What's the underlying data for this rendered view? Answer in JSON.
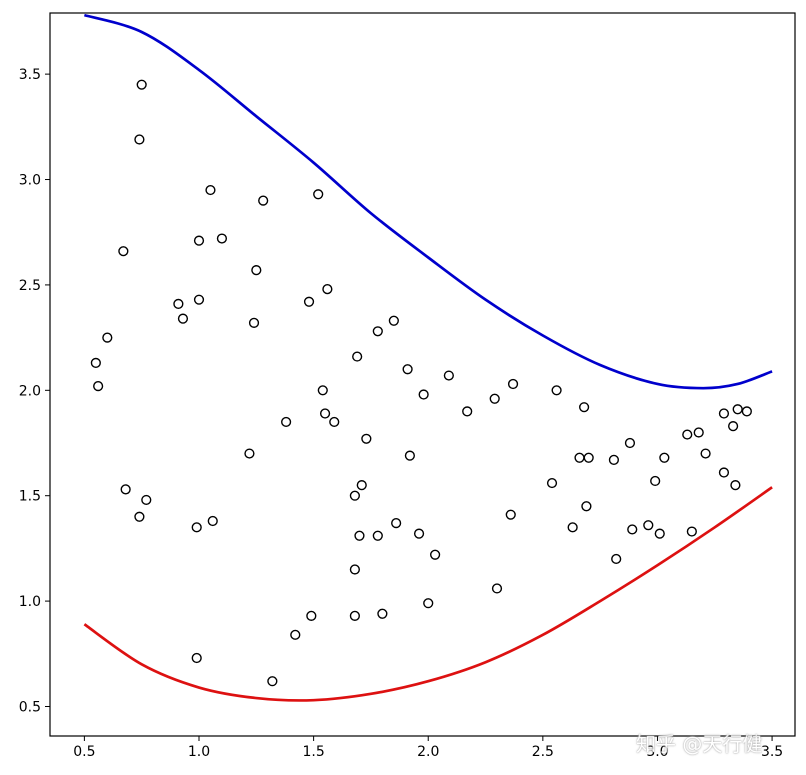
{
  "chart_data": {
    "type": "scatter",
    "title": "",
    "xlabel": "",
    "ylabel": "",
    "xlim": [
      0.35,
      3.6
    ],
    "ylim": [
      0.36,
      3.79
    ],
    "x_ticks": [
      0.5,
      1.0,
      1.5,
      2.0,
      2.5,
      3.0,
      3.5
    ],
    "x_tick_labels": [
      "0.5",
      "1.0",
      "1.5",
      "2.0",
      "2.5",
      "3.0",
      "3.5"
    ],
    "y_ticks": [
      0.5,
      1.0,
      1.5,
      2.0,
      2.5,
      3.0,
      3.5
    ],
    "y_tick_labels": [
      "0.5",
      "1.0",
      "1.5",
      "2.0",
      "2.5",
      "3.0",
      "3.5"
    ],
    "grid": false,
    "points": {
      "marker": "open-circle",
      "edge_color": "#000000",
      "x": [
        0.55,
        0.56,
        0.6,
        0.67,
        0.68,
        0.74,
        0.74,
        0.75,
        0.77,
        0.91,
        0.93,
        0.99,
        0.99,
        1.0,
        1.0,
        1.05,
        1.06,
        1.1,
        1.22,
        1.24,
        1.25,
        1.28,
        1.32,
        1.38,
        1.42,
        1.48,
        1.49,
        1.52,
        1.54,
        1.55,
        1.56,
        1.59,
        1.68,
        1.68,
        1.68,
        1.69,
        1.7,
        1.71,
        1.73,
        1.78,
        1.78,
        1.8,
        1.85,
        1.86,
        1.91,
        1.92,
        1.96,
        1.98,
        2.0,
        2.03,
        2.09,
        2.17,
        2.29,
        2.3,
        2.36,
        2.37,
        2.54,
        2.56,
        2.63,
        2.66,
        2.68,
        2.69,
        2.7,
        2.81,
        2.82,
        2.88,
        2.89,
        2.96,
        2.99,
        3.01,
        3.03,
        3.13,
        3.15,
        3.18,
        3.21,
        3.29,
        3.29,
        3.33,
        3.34,
        3.35,
        3.39
      ],
      "y": [
        2.13,
        2.02,
        2.25,
        2.66,
        1.53,
        3.19,
        1.4,
        3.45,
        1.48,
        2.41,
        2.34,
        0.73,
        1.35,
        2.43,
        2.71,
        2.95,
        1.38,
        2.72,
        1.7,
        2.32,
        2.57,
        2.9,
        0.62,
        1.85,
        0.84,
        2.42,
        0.93,
        2.93,
        2.0,
        1.89,
        2.48,
        1.85,
        1.15,
        1.5,
        0.93,
        2.16,
        1.31,
        1.55,
        1.77,
        2.28,
        1.31,
        0.94,
        2.33,
        1.37,
        2.1,
        1.69,
        1.32,
        1.98,
        0.99,
        1.22,
        2.07,
        1.9,
        1.96,
        1.06,
        1.41,
        2.03,
        1.56,
        2.0,
        1.35,
        1.68,
        1.92,
        1.45,
        1.68,
        1.67,
        1.2,
        1.75,
        1.34,
        1.36,
        1.57,
        1.32,
        1.68,
        1.79,
        1.33,
        1.8,
        1.7,
        1.61,
        1.89,
        1.83,
        1.55,
        1.91,
        1.9
      ]
    },
    "series": [
      {
        "color": "#0000cc",
        "line_width": 2,
        "x": [
          0.5,
          0.75,
          1.0,
          1.25,
          1.5,
          1.75,
          2.0,
          2.25,
          2.5,
          2.75,
          3.0,
          3.2,
          3.35,
          3.5
        ],
        "y": [
          3.78,
          3.7,
          3.52,
          3.3,
          3.08,
          2.84,
          2.63,
          2.43,
          2.26,
          2.12,
          2.03,
          2.01,
          2.03,
          2.09
        ]
      },
      {
        "color": "#dd1111",
        "line_width": 2,
        "x": [
          0.5,
          0.75,
          1.0,
          1.25,
          1.5,
          1.75,
          2.0,
          2.25,
          2.5,
          2.75,
          3.0,
          3.25,
          3.5
        ],
        "y": [
          0.89,
          0.7,
          0.59,
          0.54,
          0.53,
          0.56,
          0.62,
          0.71,
          0.84,
          1.0,
          1.17,
          1.35,
          1.54
        ]
      }
    ]
  },
  "watermark": {
    "text": "知乎 @天行健"
  }
}
